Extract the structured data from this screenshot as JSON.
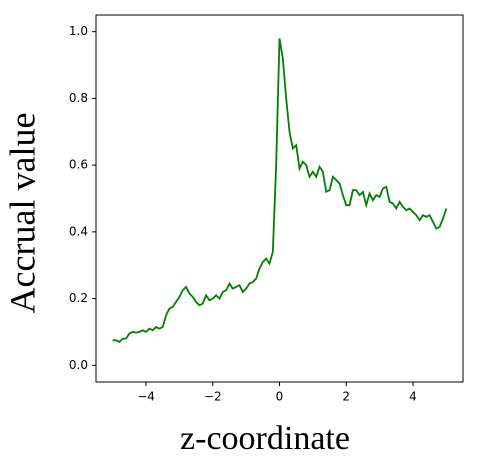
{
  "chart_data": {
    "type": "line",
    "xlabel": "z-coordinate",
    "ylabel": "Accrual value",
    "x": [
      -5.0,
      -4.9,
      -4.8,
      -4.7,
      -4.6,
      -4.5,
      -4.4,
      -4.3,
      -4.2,
      -4.1,
      -4.0,
      -3.9,
      -3.8,
      -3.7,
      -3.6,
      -3.5,
      -3.4,
      -3.3,
      -3.2,
      -3.1,
      -3.0,
      -2.9,
      -2.8,
      -2.7,
      -2.6,
      -2.5,
      -2.4,
      -2.3,
      -2.2,
      -2.1,
      -2.0,
      -1.9,
      -1.8,
      -1.7,
      -1.6,
      -1.5,
      -1.4,
      -1.3,
      -1.2,
      -1.1,
      -1.0,
      -0.9,
      -0.8,
      -0.7,
      -0.6,
      -0.5,
      -0.4,
      -0.3,
      -0.2,
      -0.1,
      0.0,
      0.1,
      0.2,
      0.3,
      0.4,
      0.5,
      0.6,
      0.7,
      0.8,
      0.9,
      1.0,
      1.1,
      1.2,
      1.3,
      1.4,
      1.5,
      1.6,
      1.7,
      1.8,
      1.9,
      2.0,
      2.1,
      2.2,
      2.3,
      2.4,
      2.5,
      2.6,
      2.7,
      2.8,
      2.9,
      3.0,
      3.1,
      3.2,
      3.3,
      3.4,
      3.5,
      3.6,
      3.7,
      3.8,
      3.9,
      4.0,
      4.1,
      4.2,
      4.3,
      4.4,
      4.5,
      4.6,
      4.7,
      4.8,
      4.9,
      5.0
    ],
    "series": [
      {
        "name": "Accrual value",
        "color": "#008000",
        "values": [
          0.075,
          0.075,
          0.07,
          0.08,
          0.08,
          0.095,
          0.1,
          0.098,
          0.1,
          0.105,
          0.1,
          0.11,
          0.105,
          0.115,
          0.11,
          0.115,
          0.15,
          0.17,
          0.175,
          0.19,
          0.205,
          0.225,
          0.235,
          0.215,
          0.205,
          0.19,
          0.18,
          0.185,
          0.21,
          0.195,
          0.2,
          0.21,
          0.2,
          0.22,
          0.225,
          0.245,
          0.23,
          0.235,
          0.24,
          0.22,
          0.23,
          0.245,
          0.25,
          0.26,
          0.29,
          0.31,
          0.32,
          0.305,
          0.34,
          0.6,
          0.98,
          0.92,
          0.8,
          0.7,
          0.65,
          0.66,
          0.59,
          0.61,
          0.6,
          0.565,
          0.58,
          0.565,
          0.595,
          0.58,
          0.52,
          0.525,
          0.565,
          0.555,
          0.545,
          0.51,
          0.48,
          0.48,
          0.525,
          0.525,
          0.51,
          0.52,
          0.48,
          0.515,
          0.495,
          0.51,
          0.505,
          0.53,
          0.535,
          0.49,
          0.485,
          0.47,
          0.49,
          0.475,
          0.465,
          0.47,
          0.46,
          0.45,
          0.435,
          0.45,
          0.445,
          0.45,
          0.43,
          0.41,
          0.415,
          0.44,
          0.47
        ]
      }
    ],
    "xlim": [
      -5.5,
      5.5
    ],
    "ylim": [
      -0.05,
      1.05
    ],
    "xticks": [
      {
        "value": -4,
        "label": "−4"
      },
      {
        "value": -2,
        "label": "−2"
      },
      0,
      2,
      4
    ],
    "yticks": [
      {
        "value": 0,
        "label": "0.0"
      },
      0.2,
      0.4,
      0.6,
      0.8,
      {
        "value": 1,
        "label": "1.0"
      }
    ]
  }
}
